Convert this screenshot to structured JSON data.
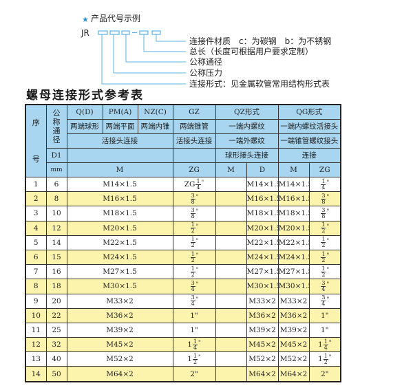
{
  "diagram": {
    "heading": "产品代号示例",
    "prefix": "JR",
    "dash": "-",
    "labels": [
      "连接件材质　c：为碳钢　b：为不锈钢",
      "总长（长度可根据用户要求定制）",
      "公称通径",
      "公称压力",
      "连接形式：见金属软管常用结构形式表"
    ],
    "accent": "#2a8fd6"
  },
  "title": "螺母连接形式参考表",
  "header": {
    "seq": [
      "序",
      "号"
    ],
    "dn": [
      "公",
      "称",
      "通",
      "径"
    ],
    "d1": "D1",
    "mm": "mm",
    "row1": [
      "Q(D)",
      "PM(A)",
      "NZ(C)",
      "GZ",
      "QZ形式",
      "QG形式"
    ],
    "row2": [
      "两端球形",
      "两端平面",
      "两端内锥",
      "两端锥管",
      "一端内螺纹",
      "一端内螺纹活接头"
    ],
    "row3": [
      "活接头连接",
      "活接头连接",
      "一端外螺纹",
      "一端锥管螺纹接头"
    ],
    "row4": [
      "球形接头连接",
      "连接"
    ],
    "row5": [
      "M",
      "ZG",
      "M",
      "D",
      "M",
      "ZG"
    ]
  },
  "rows": [
    {
      "no": "1",
      "d1": "6",
      "m": "M14×1.5",
      "gz": {
        "pre": "ZG",
        "num": "1",
        "den": "4",
        "suf": "\""
      },
      "qz_m": "",
      "qz_d": "M14×1.5",
      "qg_m": "M14×1.5",
      "qg_zg": {
        "pre": "",
        "num": "1",
        "den": "4",
        "suf": "\""
      }
    },
    {
      "no": "2",
      "d1": "8",
      "m": "M16×1.5",
      "gz": {
        "pre": "",
        "num": "3",
        "den": "8",
        "suf": "\""
      },
      "qz_m": "",
      "qz_d": "M16×1.5",
      "qg_m": "M16×1.5",
      "qg_zg": {
        "pre": "",
        "num": "3",
        "den": "8",
        "suf": "\""
      }
    },
    {
      "no": "3",
      "d1": "10",
      "m": "M18×1.5",
      "gz": {
        "pre": "",
        "num": "3",
        "den": "8",
        "suf": "\""
      },
      "qz_m": "",
      "qz_d": "M18×1.5",
      "qg_m": "M18×1.5",
      "qg_zg": {
        "pre": "",
        "num": "3",
        "den": "8",
        "suf": "\""
      }
    },
    {
      "no": "4",
      "d1": "12",
      "m": "M20×1.5",
      "gz": {
        "pre": "",
        "num": "1",
        "den": "2",
        "suf": "\""
      },
      "qz_m": "",
      "qz_d": "M20×1.5",
      "qg_m": "M20×1.5",
      "qg_zg": {
        "pre": "",
        "num": "1",
        "den": "2",
        "suf": "\""
      }
    },
    {
      "no": "5",
      "d1": "14",
      "m": "M22×1.5",
      "gz": {
        "pre": "",
        "num": "1",
        "den": "2",
        "suf": "\""
      },
      "qz_m": "",
      "qz_d": "M22×1.5",
      "qg_m": "M22×1.5",
      "qg_zg": {
        "pre": "",
        "num": "1",
        "den": "2",
        "suf": "\""
      }
    },
    {
      "no": "6",
      "d1": "15",
      "m": "M24×1.5",
      "gz": {
        "pre": "",
        "num": "1",
        "den": "2",
        "suf": "\""
      },
      "qz_m": "",
      "qz_d": "M24×1.5",
      "qg_m": "M24×1.5",
      "qg_zg": {
        "pre": "",
        "num": "1",
        "den": "2",
        "suf": "\""
      }
    },
    {
      "no": "7",
      "d1": "16",
      "m": "M27×1.5",
      "gz": {
        "pre": "",
        "num": "1",
        "den": "2",
        "suf": "\""
      },
      "qz_m": "",
      "qz_d": "M27×1.5",
      "qg_m": "M27×1.5",
      "qg_zg": {
        "pre": "",
        "num": "1",
        "den": "2",
        "suf": "\""
      }
    },
    {
      "no": "8",
      "d1": "18",
      "m": "M30×1.5",
      "gz": {
        "pre": "",
        "num": "3",
        "den": "4",
        "suf": "\""
      },
      "qz_m": "",
      "qz_d": "M30×1.5",
      "qg_m": "M30×1.5",
      "qg_zg": {
        "pre": "",
        "num": "3",
        "den": "4",
        "suf": "\""
      }
    },
    {
      "no": "9",
      "d1": "20",
      "m": "M33×2",
      "gz": {
        "pre": "",
        "num": "3",
        "den": "4",
        "suf": "\""
      },
      "qz_m": "",
      "qz_d": "M33×2",
      "qg_m": "M33×2",
      "qg_zg": {
        "pre": "",
        "num": "3",
        "den": "4",
        "suf": "\""
      }
    },
    {
      "no": "10",
      "d1": "22",
      "m": "M36×2",
      "gz": {
        "pre": "1\"",
        "num": "",
        "den": "",
        "suf": ""
      },
      "qz_m": "",
      "qz_d": "M36×2",
      "qg_m": "M36×2",
      "qg_zg": {
        "pre": "1\"",
        "num": "",
        "den": "",
        "suf": ""
      }
    },
    {
      "no": "11",
      "d1": "25",
      "m": "M39×2",
      "gz": {
        "pre": "1\"",
        "num": "",
        "den": "",
        "suf": ""
      },
      "qz_m": "",
      "qz_d": "M39×2",
      "qg_m": "M39×2",
      "qg_zg": {
        "pre": "1\"",
        "num": "",
        "den": "",
        "suf": ""
      }
    },
    {
      "no": "12",
      "d1": "32",
      "m": "M45×2",
      "gz": {
        "pre": "1",
        "num": "1",
        "den": "4",
        "suf": "\""
      },
      "qz_m": "",
      "qz_d": "M45×2",
      "qg_m": "M45×2",
      "qg_zg": {
        "pre": "1",
        "num": "1",
        "den": "4",
        "suf": "\""
      }
    },
    {
      "no": "13",
      "d1": "40",
      "m": "M52×2",
      "gz": {
        "pre": "1",
        "num": "1",
        "den": "2",
        "suf": "\""
      },
      "qz_m": "",
      "qz_d": "M52×2",
      "qg_m": "M52×2",
      "qg_zg": {
        "pre": "1",
        "num": "1",
        "den": "2",
        "suf": "\""
      }
    },
    {
      "no": "14",
      "d1": "50",
      "m": "M64×2",
      "gz": {
        "pre": "2\"",
        "num": "",
        "den": "",
        "suf": ""
      },
      "qz_m": "",
      "qz_d": "M64×2",
      "qg_m": "M64×2",
      "qg_zg": {
        "pre": "2\"",
        "num": "",
        "den": "",
        "suf": ""
      }
    }
  ],
  "colors": {
    "header_bg": "#a8d6f0",
    "stripe": "#fcf3ad",
    "accent": "#2a8fd6"
  }
}
